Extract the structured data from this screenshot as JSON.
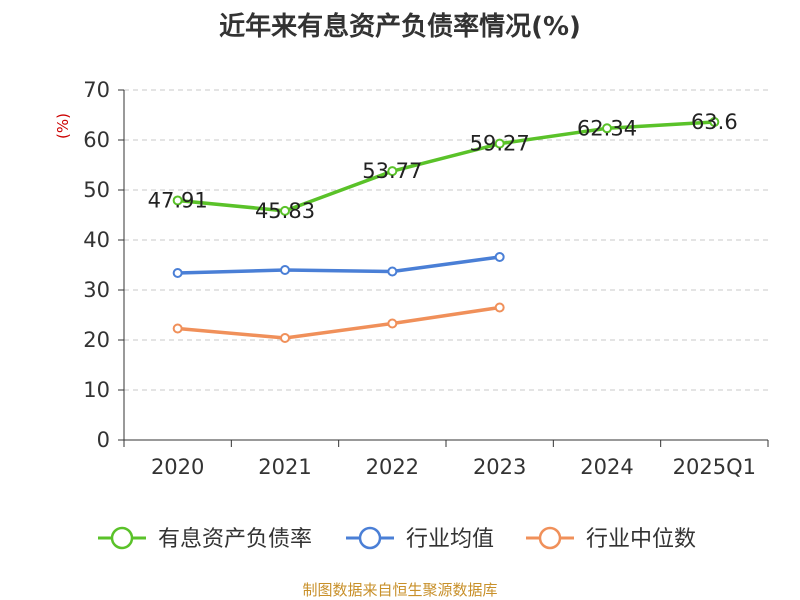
{
  "chart_data": {
    "type": "line",
    "title": "近年来有息资产负债率情况(%)",
    "xlabel": "",
    "ylabel": "(%)",
    "categories": [
      "2020",
      "2021",
      "2022",
      "2023",
      "2024",
      "2025Q1"
    ],
    "ylim": [
      0,
      70
    ],
    "yticks": [
      0,
      10,
      20,
      30,
      40,
      50,
      60,
      70
    ],
    "grid": true,
    "legend_position": "bottom",
    "series": [
      {
        "name": "有息资产负债率",
        "color": "#5ac229",
        "values": [
          47.91,
          45.83,
          53.77,
          59.27,
          62.34,
          63.6
        ],
        "labels": [
          "47.91",
          "45.83",
          "53.77",
          "59.27",
          "62.34",
          "63.6"
        ]
      },
      {
        "name": "行业均值",
        "color": "#4a7fd6",
        "values": [
          33.4,
          34.0,
          33.7,
          36.6,
          null,
          null
        ]
      },
      {
        "name": "行业中位数",
        "color": "#f0905a",
        "values": [
          22.3,
          20.4,
          23.3,
          26.5,
          null,
          null
        ]
      }
    ],
    "source": "制图数据来自恒生聚源数据库"
  },
  "colors": {
    "axis": "#333333",
    "grid": "#c8c8c8",
    "ylabel": "#cc0000",
    "source": "#c8902a"
  }
}
